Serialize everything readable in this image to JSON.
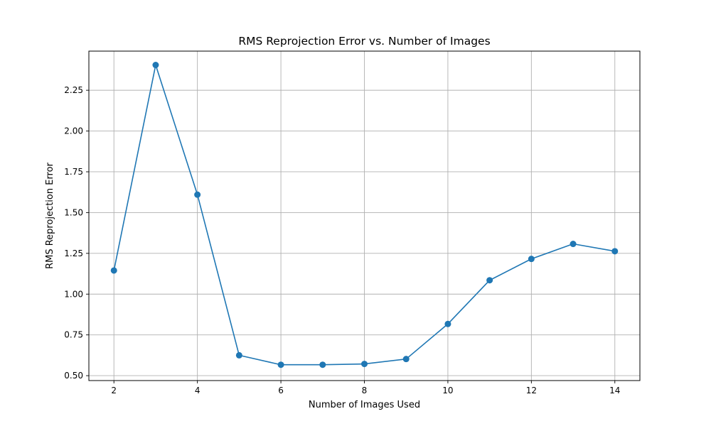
{
  "chart_data": {
    "type": "line",
    "title": "RMS Reprojection Error vs. Number of Images",
    "xlabel": "Number of Images Used",
    "ylabel": "RMS Reprojection Error",
    "xlim": [
      1.4,
      14.6
    ],
    "ylim": [
      0.47,
      2.49
    ],
    "x_ticks": [
      2,
      4,
      6,
      8,
      10,
      12,
      14
    ],
    "x_tick_labels": [
      "2",
      "4",
      "6",
      "8",
      "10",
      "12",
      "14"
    ],
    "y_ticks": [
      0.5,
      0.75,
      1.0,
      1.25,
      1.5,
      1.75,
      2.0,
      2.25
    ],
    "y_tick_labels": [
      "0.50",
      "0.75",
      "1.00",
      "1.25",
      "1.50",
      "1.75",
      "2.00",
      "2.25"
    ],
    "grid": true,
    "series": [
      {
        "color": "#1f77b4",
        "marker": "circle",
        "x": [
          2,
          3,
          4,
          5,
          6,
          7,
          8,
          9,
          10,
          11,
          12,
          13,
          14
        ],
        "y": [
          1.145,
          2.405,
          1.61,
          0.625,
          0.567,
          0.567,
          0.572,
          0.602,
          0.817,
          1.085,
          1.216,
          1.308,
          1.263
        ]
      }
    ]
  }
}
